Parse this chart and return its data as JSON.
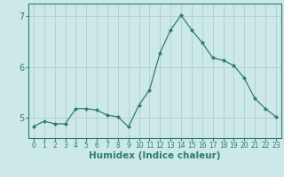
{
  "x": [
    0,
    1,
    2,
    3,
    4,
    5,
    6,
    7,
    8,
    9,
    10,
    11,
    12,
    13,
    14,
    15,
    16,
    17,
    18,
    19,
    20,
    21,
    22,
    23
  ],
  "y": [
    4.83,
    4.93,
    4.88,
    4.88,
    5.18,
    5.18,
    5.15,
    5.05,
    5.02,
    4.82,
    5.25,
    5.55,
    6.28,
    6.73,
    7.02,
    6.73,
    6.48,
    6.18,
    6.13,
    6.03,
    5.78,
    5.38,
    5.18,
    5.02
  ],
  "line_color": "#2e7d6e",
  "marker": "D",
  "marker_size": 2,
  "bg_color": "#cce8e8",
  "grid_color": "#b0cece",
  "xlabel": "Humidex (Indice chaleur)",
  "xlabel_fontsize": 7.5,
  "tick_fontsize": 7,
  "yticks": [
    5,
    6,
    7
  ],
  "xticks": [
    0,
    1,
    2,
    3,
    4,
    5,
    6,
    7,
    8,
    9,
    10,
    11,
    12,
    13,
    14,
    15,
    16,
    17,
    18,
    19,
    20,
    21,
    22,
    23
  ],
  "ylim": [
    4.6,
    7.25
  ],
  "xlim": [
    -0.5,
    23.5
  ]
}
